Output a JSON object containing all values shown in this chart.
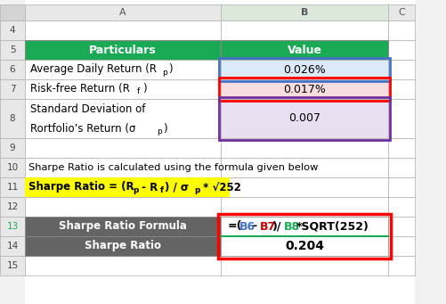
{
  "col_header_bg": "#1aaa55",
  "col_header_fg": "#ffffff",
  "row6_bg": "#dce9f7",
  "row7_bg": "#f7dce0",
  "row8_bg": "#e8e0f0",
  "row13_bg": "#646464",
  "row14_bg": "#646464",
  "formula_border": "#ff0000",
  "yellow_bg": "#ffff00",
  "grid_color": "#c0c0c0",
  "header_gray": "#e0e0e0",
  "white": "#ffffff",
  "particulars_label": "Particulars",
  "value_label": "Value",
  "row10_text": "Sharpe Ratio is calculated using the formula given below",
  "row14_value": "0.204",
  "row13_label": "Sharpe Ratio Formula",
  "row14_label": "Sharpe Ratio",
  "blue_border": "#4472c4",
  "red_border": "#ff0000",
  "purple_border": "#7030a0",
  "col_blue": "#4472c4",
  "col_red": "#c00000",
  "col_green": "#1aaa55",
  "col_black": "#000000",
  "col_purple": "#7030a0",
  "figw": 5.02,
  "figh": 3.41,
  "dpi": 100
}
